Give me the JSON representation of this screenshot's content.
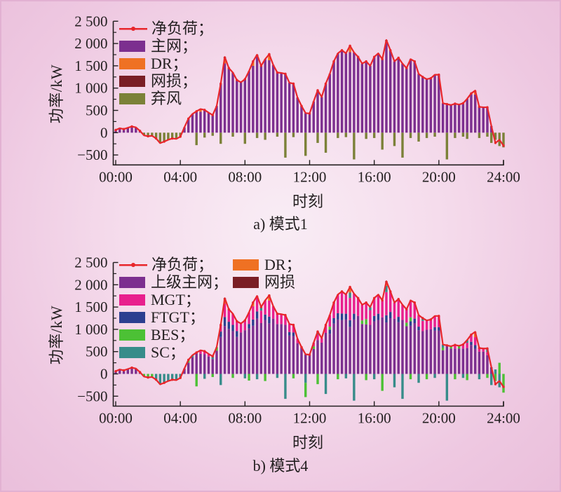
{
  "colors": {
    "net_line": "#e8262b",
    "main_grid": "#7c2f8f",
    "dr": "#ef7123",
    "loss": "#7a1e25",
    "curtailment": "#7b8138",
    "mgt": "#e81f8d",
    "ftgt": "#2c3f90",
    "bes": "#4cc135",
    "sc": "#378c8a",
    "axis": "#231f20"
  },
  "chart_data": [
    {
      "type": "stacked-bar+line",
      "caption": "a) 模式1",
      "xlabel": "时刻",
      "ylabel": "功率/kW",
      "ylim": [
        -500,
        2500
      ],
      "xlim_hours": [
        0,
        24
      ],
      "x_step_hours": 0.25,
      "grid": false,
      "legend_position": "upper-left-inside",
      "xticks": [
        "00:00",
        "04:00",
        "08:00",
        "12:00",
        "16:00",
        "20:00",
        "24:00"
      ],
      "xtick_hours": [
        0,
        4,
        8,
        12,
        16,
        20,
        24
      ],
      "yticks": [
        {
          "v": 2500,
          "label": "2 500"
        },
        {
          "v": 2000,
          "label": "2 000"
        },
        {
          "v": 1500,
          "label": "1 500"
        },
        {
          "v": 1000,
          "label": "1 000"
        },
        {
          "v": 500,
          "label": "500"
        },
        {
          "v": 0,
          "label": "0"
        },
        {
          "v": -500,
          "label": "−500"
        }
      ],
      "legend_labels": {
        "net": "净负荷；",
        "main": "主网；",
        "dr": "DR；",
        "loss": "网损；",
        "curtail": "弃风"
      },
      "base_color": "main_grid",
      "pos_order": [
        "dr",
        "loss"
      ],
      "neg_order": [
        "curtailment"
      ],
      "series": {
        "net_load": [
          60,
          100,
          80,
          110,
          140,
          120,
          40,
          -60,
          -80,
          -70,
          -130,
          -235,
          -200,
          -160,
          -130,
          -140,
          -90,
          120,
          315,
          420,
          480,
          530,
          510,
          450,
          395,
          600,
          1100,
          1700,
          1450,
          1350,
          1180,
          1130,
          1200,
          1380,
          1600,
          1750,
          1500,
          1650,
          1760,
          1520,
          1350,
          1340,
          1320,
          1120,
          1100,
          790,
          600,
          440,
          430,
          700,
          950,
          800,
          1100,
          1320,
          1600,
          1780,
          1850,
          1780,
          1950,
          1800,
          1700,
          1550,
          1600,
          1500,
          1700,
          1780,
          1650,
          2080,
          1850,
          1600,
          1680,
          1550,
          1450,
          1650,
          1600,
          1320,
          1250,
          1200,
          1220,
          1300,
          1300,
          660,
          640,
          620,
          650,
          630,
          660,
          760,
          880,
          945,
          580,
          570,
          570,
          150,
          -230,
          -160,
          -290
        ],
        "pos": {
          "dr": {
            "21": 60,
            "27": 120,
            "34": 100,
            "38": 110,
            "58": 120,
            "89": 90
          },
          "loss": {
            "27": 25,
            "35": 25,
            "38": 25,
            "56": 25,
            "58": 25,
            "67": 25
          }
        },
        "neg": {
          "curtailment": {
            "7": -60,
            "8": -80,
            "9": -70,
            "10": -130,
            "11": -235,
            "12": -200,
            "13": -160,
            "14": -130,
            "15": -140,
            "16": -90,
            "20": -280,
            "22": -110,
            "24": -70,
            "26": -250,
            "29": -90,
            "32": -250,
            "35": -120,
            "37": -160,
            "40": -90,
            "42": -560,
            "44": -100,
            "47": -520,
            "50": -230,
            "52": -450,
            "55": -120,
            "57": -100,
            "59": -600,
            "62": -140,
            "64": -120,
            "66": -380,
            "69": -300,
            "71": -560,
            "73": -120,
            "75": -200,
            "77": -120,
            "79": -90,
            "82": -600,
            "84": -120,
            "86": -90,
            "87": -140,
            "90": -120,
            "92": -90,
            "93": -230,
            "94": -160,
            "95": -300,
            "96": -330
          }
        }
      }
    },
    {
      "type": "stacked-bar+line",
      "caption": "b) 模式4",
      "xlabel": "时刻",
      "ylabel": "功率/kW",
      "ylim": [
        -500,
        2500
      ],
      "xlim_hours": [
        0,
        24
      ],
      "x_step_hours": 0.25,
      "grid": false,
      "legend_position": "upper-left-inside-two-columns",
      "xticks": [
        "00:00",
        "04:00",
        "08:00",
        "12:00",
        "16:00",
        "20:00",
        "24:00"
      ],
      "xtick_hours": [
        0,
        4,
        8,
        12,
        16,
        20,
        24
      ],
      "yticks": [
        {
          "v": 2500,
          "label": "2 500"
        },
        {
          "v": 2000,
          "label": "2 000"
        },
        {
          "v": 1500,
          "label": "1 500"
        },
        {
          "v": 1000,
          "label": "1 000"
        },
        {
          "v": 500,
          "label": "500"
        },
        {
          "v": 0,
          "label": "0"
        },
        {
          "v": -500,
          "label": "−500"
        }
      ],
      "legend_labels": {
        "net": "净负荷；",
        "main": "上级主网；",
        "mgt": "MGT；",
        "ftgt": "FTGT；",
        "bes": "BES；",
        "sc": "SC；",
        "dr": "DR；",
        "loss": "网损"
      },
      "base_color": "main_grid",
      "pos_order": [
        "ftgt",
        "bes",
        "mgt",
        "sc",
        "dr",
        "loss"
      ],
      "neg_order": [
        "sc_neg",
        "bes_neg"
      ],
      "series": {
        "net_load": [
          60,
          100,
          80,
          110,
          140,
          120,
          40,
          -60,
          -80,
          -70,
          -130,
          -235,
          -200,
          -160,
          -130,
          -140,
          -90,
          120,
          315,
          420,
          480,
          530,
          510,
          450,
          395,
          600,
          1100,
          1700,
          1450,
          1350,
          1180,
          1130,
          1200,
          1380,
          1600,
          1750,
          1500,
          1650,
          1760,
          1520,
          1350,
          1340,
          1320,
          1120,
          1100,
          790,
          600,
          440,
          430,
          700,
          950,
          800,
          1100,
          1320,
          1600,
          1780,
          1850,
          1780,
          1950,
          1800,
          1700,
          1550,
          1600,
          1500,
          1700,
          1780,
          1650,
          2080,
          1850,
          1600,
          1680,
          1550,
          1450,
          1650,
          1600,
          1320,
          1250,
          1200,
          1220,
          1300,
          1300,
          660,
          640,
          620,
          650,
          630,
          660,
          760,
          880,
          945,
          580,
          570,
          570,
          150,
          -230,
          -160,
          -290
        ],
        "pos": {
          "ftgt": {
            "26": 120,
            "27": 200,
            "28": 160,
            "29": 140,
            "30": 130,
            "33": 100,
            "34": 140,
            "35": 160,
            "37": 120,
            "38": 150,
            "43": 80,
            "44": 80,
            "53": 90,
            "54": 120,
            "55": 140,
            "56": 150,
            "57": 130,
            "58": 150,
            "59": 130,
            "64": 120,
            "65": 140,
            "67": 160,
            "68": 140,
            "70": 120,
            "73": 100,
            "74": 100,
            "75": 80,
            "79": 80,
            "80": 80,
            "88": 70,
            "89": 80,
            "93": 60
          },
          "bes": {
            "18": 60,
            "25": 80,
            "49": 60,
            "53": 70,
            "61": 80,
            "62": 120,
            "72": 80,
            "73": 90,
            "81": 60,
            "83": 50,
            "85": 60,
            "95": 250
          },
          "mgt": {
            "21": 80,
            "22": 70,
            "23": 60,
            "26": 150,
            "27": 300,
            "28": 280,
            "29": 250,
            "30": 220,
            "31": 200,
            "32": 220,
            "33": 260,
            "34": 300,
            "35": 350,
            "36": 280,
            "37": 320,
            "38": 360,
            "39": 280,
            "40": 230,
            "41": 220,
            "42": 220,
            "43": 180,
            "44": 170,
            "45": 100,
            "49": 80,
            "50": 120,
            "51": 100,
            "52": 180,
            "53": 260,
            "54": 350,
            "55": 420,
            "56": 470,
            "57": 430,
            "58": 500,
            "59": 450,
            "60": 400,
            "61": 350,
            "62": 370,
            "63": 330,
            "64": 400,
            "65": 430,
            "66": 380,
            "67": 520,
            "68": 460,
            "69": 360,
            "70": 400,
            "71": 340,
            "72": 300,
            "73": 380,
            "74": 360,
            "75": 260,
            "76": 230,
            "77": 210,
            "78": 220,
            "79": 250,
            "80": 250,
            "84": 80,
            "86": 90,
            "87": 120,
            "88": 160,
            "89": 180,
            "90": 80,
            "91": 70,
            "92": 70
          },
          "sc": {
            "19": 50,
            "24": 60,
            "36": 80,
            "50": 70,
            "58": 120,
            "63": 70,
            "67": 140,
            "76": 60,
            "81": 70,
            "87": 60,
            "92": 80,
            "94": 100
          },
          "dr": {
            "27": 100,
            "34": 80,
            "38": 90,
            "58": 100,
            "67": 80,
            "89": 120
          },
          "loss": {
            "27": 25,
            "38": 25,
            "56": 25,
            "58": 25,
            "67": 25
          }
        },
        "neg": {
          "sc_neg": {
            "10": -130,
            "11": -235,
            "12": -200,
            "13": -160,
            "14": -130,
            "15": -140,
            "16": -90,
            "22": -110,
            "26": -250,
            "32": -100,
            "35": -120,
            "40": -90,
            "42": -560,
            "47": -200,
            "52": -450,
            "57": -100,
            "59": -600,
            "64": -120,
            "69": -300,
            "71": -560,
            "75": -200,
            "79": -90,
            "82": -600,
            "86": -90,
            "90": -120,
            "93": -250,
            "95": -300
          },
          "bes_neg": {
            "7": -60,
            "8": -80,
            "9": -70,
            "20": -280,
            "24": -70,
            "29": -90,
            "33": -150,
            "37": -160,
            "44": -100,
            "47": -320,
            "50": -230,
            "55": -120,
            "62": -140,
            "66": -380,
            "73": -120,
            "77": -120,
            "84": -120,
            "87": -140,
            "92": -90,
            "94": -160,
            "96": -420
          }
        }
      }
    }
  ]
}
